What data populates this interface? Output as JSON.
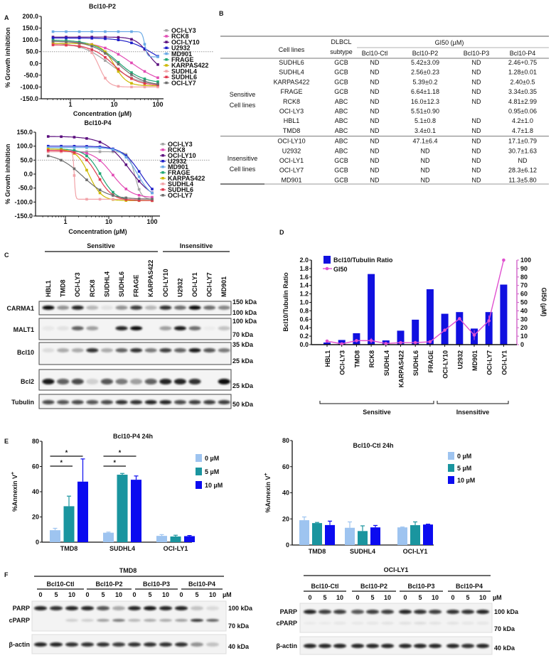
{
  "panel_labels": [
    "A",
    "B",
    "C",
    "D",
    "E",
    "F"
  ],
  "chart_data": [
    {
      "type": "line",
      "title": "Bcl10-P2",
      "xlabel": "Concentration (µM)",
      "ylabel": "% Growth inhibition",
      "xscale": "log",
      "xlim": [
        0.3,
        130
      ],
      "ylim": [
        -150,
        200
      ],
      "yticks": [
        "200.0",
        "150.0",
        "100.0",
        "50.0",
        "0.0",
        "-50.0",
        "-100.0",
        "-150.0"
      ],
      "xticks": [
        "1",
        "10",
        "100"
      ],
      "reference_line": 50,
      "concentrations": [
        0.4,
        0.8,
        1.6,
        3.1,
        6.25,
        12.5,
        25,
        50,
        100
      ],
      "legend_position": "right",
      "series": [
        {
          "name": "OCI-LY3",
          "color": "#a3a3a3",
          "top": 90,
          "bottom": -95,
          "ec50": 8,
          "hill": 1.3
        },
        {
          "name": "RCK8",
          "color": "#e24bb4",
          "top": 95,
          "bottom": -90,
          "ec50": 25,
          "hill": 1.2
        },
        {
          "name": "OCI-LY10",
          "color": "#5b0f7e",
          "top": 112,
          "bottom": -30,
          "ec50": 60,
          "hill": 3
        },
        {
          "name": "U2932",
          "color": "#1f1fc8",
          "top": 108,
          "bottom": -20,
          "ec50": 75,
          "hill": 1.5
        },
        {
          "name": "MD901",
          "color": "#6aaae6",
          "top": 135,
          "bottom": 28,
          "ec50": 50,
          "hill": 15
        },
        {
          "name": "FRAGE",
          "color": "#1fa673",
          "top": 100,
          "bottom": -85,
          "ec50": 12,
          "hill": 1.5
        },
        {
          "name": "KARPAS422",
          "color": "#ccb800",
          "top": 85,
          "bottom": -95,
          "ec50": 10,
          "hill": 3
        },
        {
          "name": "SUDHL4",
          "color": "#f2a3a8",
          "top": 78,
          "bottom": -100,
          "ec50": 4.5,
          "hill": 4
        },
        {
          "name": "SUDHL6",
          "color": "#e0384f",
          "top": 80,
          "bottom": -95,
          "ec50": 10,
          "hill": 1.7
        },
        {
          "name": "OCI-LY7",
          "color": "#6e6e6e",
          "top": 95,
          "bottom": -95,
          "ec50": 12,
          "hill": 1.5
        }
      ]
    },
    {
      "type": "line",
      "title": "Bcl10-P4",
      "xlabel": "Concentration (µM)",
      "ylabel": "% Growth inhibition",
      "xscale": "log",
      "xlim": [
        0.3,
        130
      ],
      "ylim": [
        -150,
        150
      ],
      "yticks": [
        "150.0",
        "100.0",
        "50.0",
        "0.0",
        "-50.0",
        "-100.0",
        "-150.0"
      ],
      "xticks": [
        "1",
        "10",
        "100"
      ],
      "reference_line": 50,
      "concentrations": [
        0.4,
        0.8,
        1.6,
        3.1,
        6.25,
        12.5,
        25,
        50,
        100
      ],
      "legend_position": "right",
      "series": [
        {
          "name": "OCI-LY3",
          "color": "#a3a3a3",
          "top": 80,
          "bottom": -90,
          "ec50": 40,
          "hill": 6
        },
        {
          "name": "RCK8",
          "color": "#e24bb4",
          "top": 85,
          "bottom": -85,
          "ec50": 12,
          "hill": 2
        },
        {
          "name": "OCI-LY10",
          "color": "#5b0f7e",
          "top": 135,
          "bottom": -100,
          "ec50": 30,
          "hill": 1.5
        },
        {
          "name": "U2932",
          "color": "#1f1fc8",
          "top": 100,
          "bottom": -100,
          "ec50": 55,
          "hill": 2
        },
        {
          "name": "MD901",
          "color": "#6aaae6",
          "top": 95,
          "bottom": -90,
          "ec50": 45,
          "hill": 2.5
        },
        {
          "name": "FRAGE",
          "color": "#1fa673",
          "top": 90,
          "bottom": -95,
          "ec50": 6.5,
          "hill": 2.5
        },
        {
          "name": "KARPAS422",
          "color": "#ccb800",
          "top": 90,
          "bottom": -95,
          "ec50": 3.5,
          "hill": 3
        },
        {
          "name": "SUDHL4",
          "color": "#f2a3a8",
          "top": 80,
          "bottom": -90,
          "ec50": 1.6,
          "hill": 30
        },
        {
          "name": "SUDHL6",
          "color": "#e0384f",
          "top": 85,
          "bottom": -95,
          "ec50": 5.5,
          "hill": 2.5
        },
        {
          "name": "OCI-LY7",
          "color": "#6e6e6e",
          "top": 75,
          "bottom": -90,
          "ec50": 2.5,
          "hill": 1.5
        }
      ]
    },
    {
      "type": "bar",
      "categories": [
        "HBL1",
        "OCI-LY3",
        "TMD8",
        "RCK8",
        "SUDHL4",
        "KARPAS422",
        "SUDHL6",
        "FRAGE",
        "OCI-LY10",
        "U2932",
        "MD901",
        "OCI-LY7",
        "OCI-LY1"
      ],
      "category_colors": [
        "#e0141e",
        "#e0141e",
        "#e0141e",
        "#e0141e",
        "#ef8c2a",
        "#ef8c2a",
        "#ef8c2a",
        "#ef8c2a",
        "#e0141e",
        "#e0141e",
        "#5b9bd5",
        "#5b9bd5",
        "#5b9bd5"
      ],
      "series": [
        {
          "name": "Bcl10/Tubulin Ratio",
          "type": "bar",
          "axis": "left",
          "color": "#1010e0",
          "values": [
            0.05,
            0.11,
            0.27,
            1.67,
            0.1,
            0.33,
            0.59,
            1.31,
            0.73,
            0.77,
            0.38,
            0.77,
            1.42
          ]
        },
        {
          "name": "GI50",
          "type": "line",
          "axis": "right",
          "color": "#e050d0",
          "values": [
            4.2,
            0.95,
            4.7,
            4.81,
            1.28,
            2.4,
            2.46,
            3.34,
            17.1,
            30.7,
            11.3,
            28.3,
            100
          ],
          "errors": [
            1,
            0.06,
            1.8,
            2.99,
            0.01,
            0.5,
            0.75,
            0.35,
            0.79,
            1.63,
            5.8,
            6.12,
            0
          ]
        }
      ],
      "ylabel": "Bcl10/Tubulin Ratio",
      "y2label": "GI50 (µM)",
      "ylim": [
        0,
        2.0
      ],
      "y2lim": [
        0,
        100
      ],
      "yticks": [
        "0.0",
        "0.2",
        "0.4",
        "0.6",
        "0.8",
        "1.0",
        "1.2",
        "1.4",
        "1.6",
        "1.8",
        "2.0"
      ],
      "y2ticks": [
        "0",
        "10",
        "20",
        "30",
        "40",
        "50",
        "60",
        "70",
        "80",
        "90",
        "100"
      ],
      "groups": [
        {
          "label": "Sensitive",
          "from": 0,
          "to": 7
        },
        {
          "label": "Insensitive",
          "from": 8,
          "to": 12
        }
      ],
      "legend_position": "top-left"
    },
    {
      "type": "bar",
      "title": "Bcl10-P4 24h",
      "ylabel": "%Annexin V",
      "ylabel_sup": "+",
      "categories": [
        "TMD8",
        "SUDHL4",
        "OCI-LY1"
      ],
      "ylim": [
        0,
        80
      ],
      "yticks": [
        "0",
        "20",
        "40",
        "60",
        "80"
      ],
      "series": [
        {
          "name": "0 µM",
          "color": "#9ec4f0",
          "values": [
            9.5,
            7.5,
            5.0
          ],
          "errors": [
            1.5,
            0.5,
            1.0
          ]
        },
        {
          "name": "5 µM",
          "color": "#1a959f",
          "values": [
            28.5,
            53.5,
            4.5
          ],
          "errors": [
            8,
            1,
            1
          ]
        },
        {
          "name": "10 µM",
          "color": "#0b0bf0",
          "values": [
            48,
            49.5,
            4.8
          ],
          "errors": [
            18,
            3,
            0.5
          ]
        }
      ],
      "significance": [
        {
          "category": "TMD8",
          "compare": [
            "0 µM",
            "10 µM"
          ],
          "label": "*"
        },
        {
          "category": "TMD8",
          "compare": [
            "0 µM",
            "5 µM"
          ],
          "label": "*"
        },
        {
          "category": "SUDHL4",
          "compare": [
            "0 µM",
            "10 µM"
          ],
          "label": "*"
        },
        {
          "category": "SUDHL4",
          "compare": [
            "0 µM",
            "5 µM"
          ],
          "label": "*"
        }
      ],
      "legend_position": "right"
    },
    {
      "type": "bar",
      "title": "Bcl10-Ctl 24h",
      "ylabel": "%Annexin V",
      "ylabel_sup": "+",
      "categories": [
        "TMD8",
        "SUDHL4",
        "OCI-LY1"
      ],
      "ylim": [
        0,
        80
      ],
      "yticks": [
        "0",
        "20",
        "40",
        "60",
        "80"
      ],
      "series": [
        {
          "name": "0 µM",
          "color": "#9ec4f0",
          "values": [
            19,
            13.2,
            13.5
          ],
          "errors": [
            2.5,
            4.5,
            0.3
          ]
        },
        {
          "name": "5 µM",
          "color": "#1a959f",
          "values": [
            16.8,
            10.7,
            15.2
          ],
          "errors": [
            0.5,
            4,
            2.5
          ]
        },
        {
          "name": "10 µM",
          "color": "#0b0bf0",
          "values": [
            15.3,
            13.5,
            15.7
          ],
          "errors": [
            3,
            1.5,
            0.3
          ]
        }
      ],
      "legend_position": "right"
    }
  ],
  "table_b": {
    "cell_lines_header": "Cell lines",
    "subtype_header": [
      "DLBCL",
      "subtype"
    ],
    "gi50_header": "GI50 (µM)",
    "columns": [
      "Bcl10-Ctl",
      "Bcl10-P2",
      "Bcl10-P3",
      "Bcl10-P4"
    ],
    "groups": [
      {
        "label": [
          "Sensitive",
          "Cell lines"
        ],
        "rows": [
          {
            "cell": "SUDHL6",
            "subtype": "GCB",
            "color": "#e8923a",
            "values": [
              "ND",
              "5.42±3.09",
              "ND",
              "2.46+0.75"
            ]
          },
          {
            "cell": "SUDHL4",
            "subtype": "GCB",
            "color": "#e8923a",
            "values": [
              "ND",
              "2.56±0.23",
              "ND",
              "1.28±0.01"
            ]
          },
          {
            "cell": "KARPAS422",
            "subtype": "GCB",
            "color": "#e8923a",
            "values": [
              "ND",
              "5.39±0.2",
              "ND",
              "2.40±0.5"
            ]
          },
          {
            "cell": "FRAGE",
            "subtype": "GCB",
            "color": "#e8923a",
            "values": [
              "ND",
              "6.64±1.18",
              "ND",
              "3.34±0.35"
            ]
          },
          {
            "cell": "RCK8",
            "subtype": "ABC",
            "color": "#dd1c2a",
            "values": [
              "ND",
              "16.0±12.3",
              "ND",
              "4.81±2.99"
            ]
          },
          {
            "cell": "OCI-LY3",
            "subtype": "ABC",
            "color": "#dd1c2a",
            "values": [
              "ND",
              "5.51±0.90",
              "",
              "0.95±0.06"
            ]
          },
          {
            "cell": "HBL1",
            "subtype": "ABC",
            "color": "#dd1c2a",
            "values": [
              "ND",
              "5.1±0.8",
              "ND",
              "4.2±1.0"
            ]
          },
          {
            "cell": "TMD8",
            "subtype": "ABC",
            "color": "#dd1c2a",
            "values": [
              "ND",
              "3.4±0.1",
              "ND",
              "4.7±1.8"
            ]
          }
        ]
      },
      {
        "label": [
          "Insensitive",
          "Cell lines"
        ],
        "rows": [
          {
            "cell": "OCI-LY10",
            "subtype": "ABC",
            "color": "#e88ab4",
            "values": [
              "ND",
              "47.1±6.4",
              "ND",
              "17.1±0.79"
            ]
          },
          {
            "cell": "U2932",
            "subtype": "ABC",
            "color": "#e88ab4",
            "values": [
              "ND",
              "ND",
              "ND",
              "30.7±1.63"
            ]
          },
          {
            "cell": "OCI-LY1",
            "subtype": "GCB",
            "color": "#6e9fd6",
            "values": [
              "ND",
              "ND",
              "ND",
              "ND"
            ]
          },
          {
            "cell": "OCI-LY7",
            "subtype": "GCB",
            "color": "#6e9fd6",
            "values": [
              "ND",
              "ND",
              "ND",
              "28.3±6.12"
            ]
          },
          {
            "cell": "MD901",
            "subtype": "GCB",
            "color": "#6e9fd6",
            "values": [
              "ND",
              "ND",
              "ND",
              "11.3±5.80"
            ]
          }
        ]
      }
    ]
  },
  "blot_c": {
    "groups": [
      {
        "label": "Sensitive"
      },
      {
        "label": "Insensitive"
      }
    ],
    "lanes": [
      {
        "name": "HBL1",
        "color": "#e0141e"
      },
      {
        "name": "TMD8",
        "color": "#e0141e"
      },
      {
        "name": "OCI-LY3",
        "color": "#e0141e"
      },
      {
        "name": "RCK8",
        "color": "#e0141e"
      },
      {
        "name": "SUDHL4",
        "color": "#ef9a45"
      },
      {
        "name": "SUDHL6",
        "color": "#ef9a45"
      },
      {
        "name": "FRAGE",
        "color": "#ef9a45"
      },
      {
        "name": "KARPAS422",
        "color": "#ef9a45"
      },
      {
        "name": "OCI-LY10",
        "color": "#e0141e"
      },
      {
        "name": "U2932",
        "color": "#e0141e"
      },
      {
        "name": "OCI-LY1",
        "color": "#1aa3d9"
      },
      {
        "name": "OCI-LY7",
        "color": "#1aa3d9"
      },
      {
        "name": "MD901",
        "color": "#1aa3d9"
      }
    ],
    "rows": [
      {
        "label": "CARMA1",
        "markers": [
          "150 kDa",
          "100 kDa"
        ],
        "intensity": [
          1,
          0.4,
          0.9,
          0.25,
          0.08,
          0.4,
          0.8,
          0.25,
          0.85,
          0.55,
          1,
          0.55,
          0.45
        ]
      },
      {
        "label": "MALT1",
        "markers": [
          "100 kDa",
          "70 kDa"
        ],
        "intensity": [
          0.05,
          0.08,
          0.6,
          0.35,
          0,
          0.9,
          1,
          0,
          0.35,
          0.95,
          0.55,
          0.03,
          0.2
        ]
      },
      {
        "label": "Bcl10",
        "markers": [
          "35 kDa",
          "25 kDa"
        ],
        "intensity": [
          0.1,
          0.3,
          0.3,
          0.85,
          0.3,
          0.6,
          0.85,
          0.5,
          0.8,
          0.65,
          0.95,
          0.7,
          0.5
        ]
      },
      {
        "label": "Bcl2",
        "markers": [
          "25 kDa"
        ],
        "intensity": [
          0.95,
          0.65,
          0.75,
          0.15,
          0.7,
          0.5,
          0.35,
          0.65,
          0.9,
          0.9,
          0.85,
          0,
          1
        ]
      },
      {
        "label": "Tubulin",
        "markers": [
          "50 kDa"
        ],
        "intensity": [
          0.75,
          0.7,
          0.75,
          0.7,
          0.75,
          0.85,
          0.85,
          0.9,
          0.9,
          0.75,
          0.8,
          0.8,
          0.8
        ]
      }
    ]
  },
  "blot_f": [
    {
      "cell_line": "TMD8",
      "unit": "µM",
      "treatments": [
        {
          "name": "Bcl10-Ctl",
          "color": "#111111"
        },
        {
          "name": "Bcl10-P2",
          "color": "#e0141e"
        },
        {
          "name": "Bcl10-P3",
          "color": "#111111"
        },
        {
          "name": "Bcl10-P4",
          "color": "#e0141e"
        }
      ],
      "doses": [
        "0",
        "5",
        "10"
      ],
      "rows": [
        {
          "label": "PARP",
          "intensity": [
            0.9,
            0.85,
            0.9,
            0.9,
            0.7,
            0.3,
            0.9,
            0.95,
            0.9,
            0.9,
            0.2,
            0.1
          ]
        },
        {
          "label": "cPARP",
          "intensity": [
            0,
            0,
            0.15,
            0.15,
            0.35,
            0.5,
            0.25,
            0.3,
            0.3,
            0.35,
            0.85,
            0.6
          ]
        },
        {
          "label": "β-actin",
          "intensity": [
            0.9,
            0.9,
            0.85,
            0.85,
            0.85,
            0.8,
            0.85,
            0.85,
            0.85,
            0.85,
            0.4,
            0.2
          ]
        }
      ],
      "markers": [
        "100 kDa",
        "70 kDa",
        "40 kDa"
      ]
    },
    {
      "cell_line": "OCI-LY1",
      "unit": "µM",
      "treatments": [
        {
          "name": "Bcl10-Ctl",
          "color": "#111111"
        },
        {
          "name": "Bcl10-P2",
          "color": "#e0141e"
        },
        {
          "name": "Bcl10-P3",
          "color": "#111111"
        },
        {
          "name": "Bcl10-P4",
          "color": "#e0141e"
        }
      ],
      "doses": [
        "0",
        "5",
        "10"
      ],
      "rows": [
        {
          "label": "PARP",
          "intensity": [
            0.9,
            0.8,
            0.8,
            0.7,
            0.8,
            0.8,
            0.9,
            0.85,
            0.8,
            0.85,
            0.85,
            0.9
          ]
        },
        {
          "label": "cPARP",
          "intensity": [
            0.04,
            0.04,
            0.06,
            0.05,
            0.06,
            0.07,
            0.08,
            0.09,
            0.07,
            0.07,
            0.06,
            0.06
          ]
        },
        {
          "label": "β-actin",
          "intensity": [
            0.9,
            0.9,
            0.9,
            0.9,
            0.9,
            0.9,
            0.9,
            0.9,
            0.9,
            0.9,
            0.85,
            0.9
          ]
        }
      ],
      "markers": [
        "100 kDa",
        "70 kDa",
        "40 kDa"
      ]
    }
  ]
}
